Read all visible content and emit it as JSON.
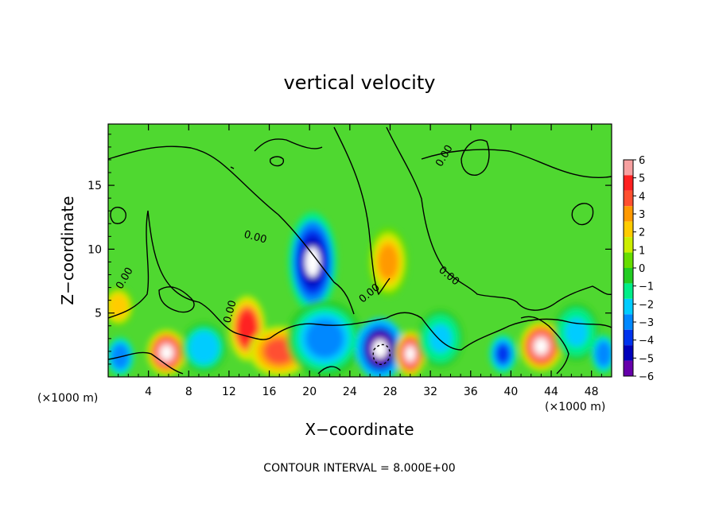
{
  "chart_data": {
    "type": "heatmap",
    "title": "vertical velocity",
    "xlabel": "X−coordinate",
    "ylabel": "Z−coordinate",
    "x_unit_left": "(×1000 m)",
    "x_unit_right": "(×1000 m)",
    "footer": "CONTOUR INTERVAL = 8.000E+00",
    "xlim": [
      0,
      50
    ],
    "ylim": [
      0,
      19.8
    ],
    "x_ticks": [
      4,
      8,
      12,
      16,
      20,
      24,
      28,
      32,
      36,
      40,
      44,
      48
    ],
    "y_ticks": [
      5,
      10,
      15
    ],
    "contour_labels": [
      "0.00",
      "0.00",
      "0.00",
      "0.00",
      "0.00",
      "0.00"
    ],
    "colorbar": {
      "range": [
        -6,
        6
      ],
      "ticks": [
        "6",
        "5",
        "4",
        "3",
        "2",
        "1",
        "0",
        "−1",
        "−2",
        "−3",
        "−4",
        "−5",
        "−6"
      ],
      "colors": [
        "#f7a0a0",
        "#ff2020",
        "#ff5030",
        "#ff9900",
        "#ffcc00",
        "#ccee00",
        "#66dd00",
        "#22cc22",
        "#00ee88",
        "#00ccff",
        "#0088ff",
        "#0033ee",
        "#0000bb",
        "#6600aa"
      ]
    },
    "features": [
      {
        "x": 1.2,
        "z": 1.6,
        "w": -4.5,
        "sx": 0.9,
        "sz": 1.0
      },
      {
        "x": 5.8,
        "z": 1.9,
        "w": 7.0,
        "sx": 1.3,
        "sz": 1.2
      },
      {
        "x": 9.5,
        "z": 2.3,
        "w": -3.0,
        "sx": 1.5,
        "sz": 1.3
      },
      {
        "x": 13.8,
        "z": 3.8,
        "w": 6.0,
        "sx": 1.2,
        "sz": 1.7
      },
      {
        "x": 17.0,
        "z": 2.0,
        "w": 5.0,
        "sx": 2.0,
        "sz": 1.3
      },
      {
        "x": 20.3,
        "z": 9.0,
        "w": -6.5,
        "sx": 1.6,
        "sz": 2.6
      },
      {
        "x": 21.5,
        "z": 3.0,
        "w": -3.5,
        "sx": 2.5,
        "sz": 2.0
      },
      {
        "x": 27.0,
        "z": 2.2,
        "w": -7.5,
        "sx": 1.6,
        "sz": 1.6
      },
      {
        "x": 27.8,
        "z": 9.0,
        "w": 3.5,
        "sx": 1.3,
        "sz": 1.8
      },
      {
        "x": 30.0,
        "z": 1.8,
        "w": 7.0,
        "sx": 1.0,
        "sz": 1.2
      },
      {
        "x": 39.2,
        "z": 1.8,
        "w": -5.0,
        "sx": 0.9,
        "sz": 1.0
      },
      {
        "x": 43.0,
        "z": 2.4,
        "w": 7.0,
        "sx": 1.4,
        "sz": 1.3
      },
      {
        "x": 46.5,
        "z": 3.5,
        "w": -2.5,
        "sx": 1.5,
        "sz": 1.5
      },
      {
        "x": 49.2,
        "z": 1.8,
        "w": -4.5,
        "sx": 0.8,
        "sz": 1.0
      },
      {
        "x": 1.0,
        "z": 5.5,
        "w": 3.0,
        "sx": 1.0,
        "sz": 1.0
      },
      {
        "x": 33.0,
        "z": 3.0,
        "w": -2.5,
        "sx": 1.5,
        "sz": 1.5
      }
    ]
  }
}
